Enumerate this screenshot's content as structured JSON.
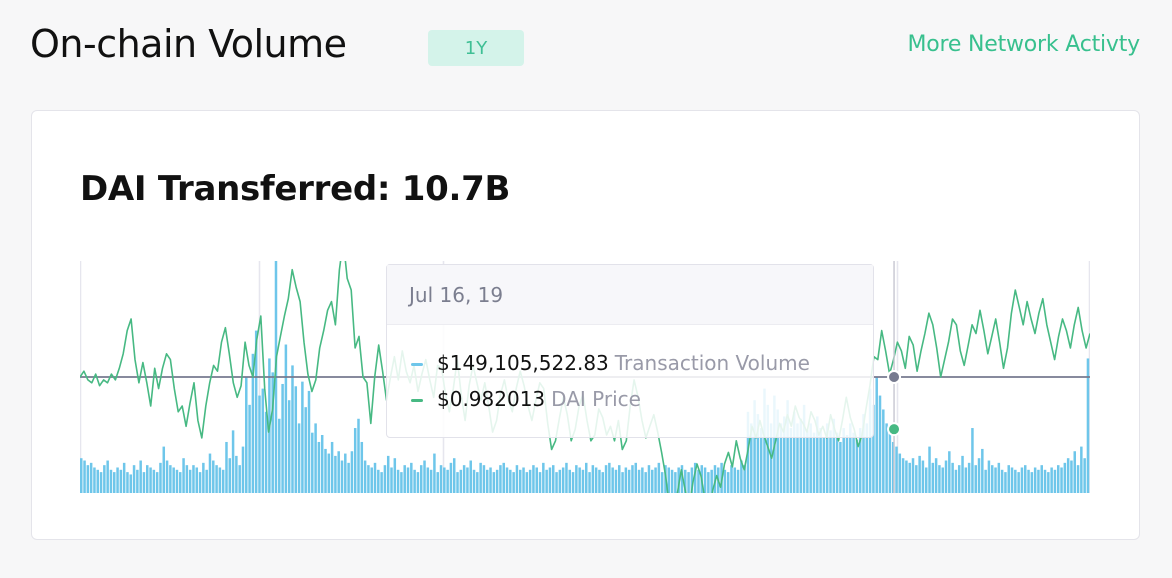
{
  "header": {
    "title": "On-chain Volume",
    "period_badge": "1Y",
    "network_link": "More Network Activty"
  },
  "card": {
    "title": "DAI Transferred: 10.7B"
  },
  "tooltip": {
    "date": "Jul 16, 19",
    "rows": [
      {
        "value": "$149,105,522.83",
        "label": "Transaction Volume",
        "color": "#6ec6ea"
      },
      {
        "value": "$0.982013",
        "label": "DAI Price",
        "color": "#47b983"
      }
    ]
  },
  "colors": {
    "accent": "#38c08e",
    "volume_bar": "#6ec6ea",
    "price_line": "#47b983",
    "reference_line": "#767a8f"
  },
  "chart_data": {
    "type": "bar",
    "title": "DAI Transferred: 10.7B",
    "xlabel": "",
    "ylabel": "",
    "grid": false,
    "legend": "none",
    "ylim": [
      0,
      1
    ],
    "y2lim": [
      0.96,
      1.04
    ],
    "reference_value": 1.0,
    "series": [
      {
        "name": "Transaction Volume",
        "kind": "bar",
        "axis": "y",
        "values": [
          0.15,
          0.14,
          0.12,
          0.13,
          0.11,
          0.1,
          0.09,
          0.12,
          0.14,
          0.1,
          0.09,
          0.11,
          0.1,
          0.13,
          0.09,
          0.08,
          0.12,
          0.1,
          0.14,
          0.09,
          0.12,
          0.11,
          0.1,
          0.09,
          0.13,
          0.2,
          0.14,
          0.12,
          0.11,
          0.1,
          0.09,
          0.15,
          0.12,
          0.1,
          0.12,
          0.11,
          0.09,
          0.13,
          0.1,
          0.17,
          0.14,
          0.12,
          0.11,
          0.1,
          0.22,
          0.15,
          0.27,
          0.16,
          0.12,
          0.2,
          0.5,
          0.38,
          0.6,
          0.7,
          0.42,
          0.45,
          0.35,
          0.58,
          0.52,
          1.0,
          0.32,
          0.47,
          0.64,
          0.4,
          0.55,
          0.46,
          0.3,
          0.48,
          0.37,
          0.44,
          0.26,
          0.3,
          0.22,
          0.25,
          0.19,
          0.17,
          0.22,
          0.16,
          0.18,
          0.14,
          0.17,
          0.13,
          0.18,
          0.28,
          0.32,
          0.22,
          0.14,
          0.12,
          0.11,
          0.13,
          0.1,
          0.09,
          0.12,
          0.16,
          0.11,
          0.15,
          0.1,
          0.09,
          0.12,
          0.11,
          0.13,
          0.1,
          0.09,
          0.12,
          0.14,
          0.11,
          0.1,
          0.17,
          0.09,
          0.12,
          0.11,
          0.1,
          0.13,
          0.15,
          0.09,
          0.1,
          0.12,
          0.11,
          0.14,
          0.1,
          0.09,
          0.13,
          0.12,
          0.1,
          0.11,
          0.09,
          0.1,
          0.12,
          0.13,
          0.11,
          0.1,
          0.09,
          0.12,
          0.1,
          0.11,
          0.09,
          0.1,
          0.12,
          0.11,
          0.09,
          0.13,
          0.1,
          0.11,
          0.12,
          0.09,
          0.1,
          0.11,
          0.13,
          0.1,
          0.09,
          0.12,
          0.11,
          0.1,
          0.13,
          0.09,
          0.12,
          0.11,
          0.1,
          0.09,
          0.12,
          0.13,
          0.11,
          0.1,
          0.12,
          0.09,
          0.11,
          0.1,
          0.12,
          0.13,
          0.1,
          0.11,
          0.09,
          0.12,
          0.1,
          0.11,
          0.13,
          0.09,
          0.12,
          0.11,
          0.1,
          0.09,
          0.11,
          0.12,
          0.1,
          0.09,
          0.11,
          0.13,
          0.1,
          0.12,
          0.11,
          0.09,
          0.1,
          0.12,
          0.11,
          0.13,
          0.1,
          0.09,
          0.12,
          0.11,
          0.1,
          0.14,
          0.12,
          0.35,
          0.3,
          0.4,
          0.34,
          0.28,
          0.45,
          0.38,
          0.3,
          0.42,
          0.36,
          0.3,
          0.33,
          0.4,
          0.28,
          0.35,
          0.3,
          0.32,
          0.38,
          0.27,
          0.3,
          0.26,
          0.33,
          0.28,
          0.24,
          0.3,
          0.27,
          0.32,
          0.26,
          0.22,
          0.28,
          0.25,
          0.3,
          0.26,
          0.23,
          0.28,
          0.34,
          0.3,
          0.45,
          0.38,
          0.5,
          0.42,
          0.36,
          0.3,
          0.26,
          0.22,
          0.2,
          0.17,
          0.15,
          0.14,
          0.13,
          0.15,
          0.12,
          0.16,
          0.14,
          0.11,
          0.2,
          0.13,
          0.15,
          0.12,
          0.11,
          0.14,
          0.18,
          0.13,
          0.1,
          0.12,
          0.16,
          0.11,
          0.13,
          0.28,
          0.12,
          0.15,
          0.19,
          0.1,
          0.14,
          0.12,
          0.11,
          0.13,
          0.1,
          0.09,
          0.12,
          0.11,
          0.1,
          0.09,
          0.11,
          0.12,
          0.1,
          0.09,
          0.11,
          0.1,
          0.12,
          0.1,
          0.09,
          0.11,
          0.1,
          0.12,
          0.11,
          0.13,
          0.15,
          0.14,
          0.18,
          0.12,
          0.2,
          0.15,
          0.58
        ]
      },
      {
        "name": "DAI Price",
        "kind": "line",
        "axis": "y2",
        "values": [
          1.0,
          1.002,
          0.999,
          0.998,
          1.001,
          0.997,
          0.999,
          0.998,
          1.001,
          0.999,
          1.003,
          1.008,
          1.016,
          1.02,
          1.006,
          0.998,
          1.005,
          0.998,
          0.99,
          1.003,
          0.996,
          1.003,
          1.008,
          1.006,
          0.996,
          0.988,
          0.99,
          0.983,
          0.991,
          0.998,
          0.985,
          0.979,
          0.99,
          0.998,
          1.004,
          1.002,
          1.012,
          1.017,
          1.008,
          0.998,
          0.993,
          0.997,
          1.012,
          1.004,
          1.0,
          1.013,
          1.021,
          0.996,
          0.981,
          0.989,
          1.007,
          1.014,
          1.021,
          1.027,
          1.037,
          1.031,
          1.026,
          1.012,
          1.001,
          0.995,
          0.999,
          1.01,
          1.016,
          1.023,
          1.026,
          1.018,
          1.037,
          1.047,
          1.034,
          1.03,
          1.01,
          1.014,
          1.0,
          0.998,
          0.984,
          1.0,
          1.011,
          1.002,
          0.992,
          1.0,
          1.007,
          0.999,
          1.009,
          1.002,
          0.998,
          1.004,
          0.995,
          1.001,
          1.006,
          0.999,
          0.993,
          1.004,
          1.003,
          0.994,
          0.988,
          0.996,
          1.006,
          0.994,
          0.985,
          0.997,
          1.004,
          0.998,
          0.992,
          0.998,
          0.99,
          0.981,
          0.985,
          0.994,
          0.999,
          0.992,
          0.988,
          0.996,
          1.002,
          0.997,
          0.99,
          0.985,
          0.992,
          0.998,
          0.996,
          0.984,
          0.975,
          0.978,
          0.986,
          0.993,
          0.987,
          0.978,
          0.982,
          0.99,
          0.994,
          0.985,
          0.978,
          0.98,
          0.989,
          0.986,
          0.98,
          0.983,
          0.978,
          0.985,
          0.975,
          0.978,
          0.99,
          0.999,
          0.993,
          0.985,
          0.979,
          0.983,
          0.987,
          0.981,
          0.974,
          0.966,
          0.955,
          0.952,
          0.96,
          0.968,
          0.961,
          0.955,
          0.964,
          0.97,
          0.966,
          0.958,
          0.95,
          0.961,
          0.966,
          0.962,
          0.97,
          0.974,
          0.969,
          0.978,
          0.972,
          0.968,
          0.975,
          0.983,
          0.979,
          0.985,
          0.98,
          0.976,
          0.972,
          0.978,
          0.984,
          0.981,
          0.987,
          0.983,
          0.99,
          0.986,
          0.984,
          0.981,
          0.988,
          0.985,
          0.98,
          0.983,
          0.979,
          0.987,
          0.982,
          0.978,
          0.985,
          0.993,
          0.986,
          0.982,
          0.976,
          0.98,
          0.989,
          0.997,
          1.007,
          1.006,
          1.016,
          1.009,
          1.001,
          1.006,
          1.012,
          1.009,
          1.003,
          1.014,
          1.011,
          1.002,
          1.009,
          1.015,
          1.022,
          1.018,
          1.01,
          1.0,
          1.006,
          1.012,
          1.02,
          1.018,
          1.009,
          1.004,
          1.011,
          1.018,
          1.015,
          1.023,
          1.016,
          1.008,
          1.014,
          1.02,
          1.012,
          1.003,
          1.01,
          1.022,
          1.03,
          1.024,
          1.018,
          1.026,
          1.02,
          1.015,
          1.022,
          1.027,
          1.018,
          1.012,
          1.006,
          1.014,
          1.02,
          1.016,
          1.01,
          1.018,
          1.024,
          1.016,
          1.01,
          1.015
        ]
      }
    ]
  }
}
